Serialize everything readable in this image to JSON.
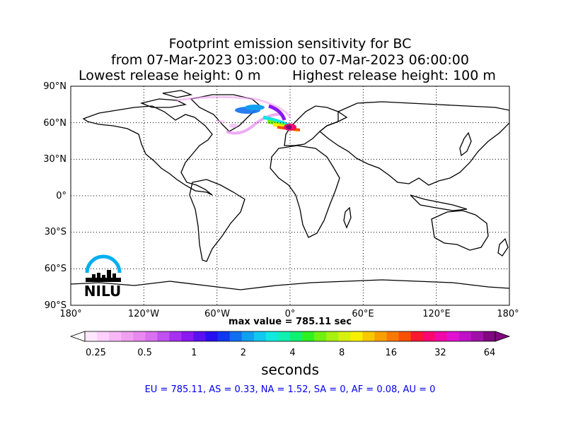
{
  "title": {
    "line1": "Footprint emission sensitivity for BC",
    "line2": "from 07-Mar-2023 03:00:00 to 07-Mar-2023 06:00:00",
    "lowest": "Lowest release height: 0 m",
    "highest": "Highest release height: 100 m"
  },
  "axes": {
    "lat_labels": [
      "90°N",
      "60°N",
      "30°N",
      "0°",
      "30°S",
      "60°S",
      "90°S"
    ],
    "lon_labels": [
      "180°",
      "120°W",
      "60°W",
      "0°",
      "60°E",
      "120°E",
      "180°"
    ]
  },
  "max_value": "max value = 785.11 sec",
  "colorbar": {
    "ticks": [
      "0.25",
      "0.5",
      "1",
      "2",
      "4",
      "8",
      "16",
      "32",
      "64"
    ],
    "units": "seconds",
    "colors": [
      "#ffe8ff",
      "#ffd0ff",
      "#f8b8f8",
      "#f0a0f0",
      "#e888f0",
      "#d870f0",
      "#c050f0",
      "#a830f0",
      "#8a18f0",
      "#5a10f0",
      "#2810f0",
      "#1038f0",
      "#1070f0",
      "#10a0f0",
      "#10c8f0",
      "#10e8e0",
      "#10f0b0",
      "#10f070",
      "#30f020",
      "#70f010",
      "#a8f010",
      "#d8f010",
      "#f8f000",
      "#f8c800",
      "#f8a000",
      "#f87800",
      "#f85000",
      "#f81830",
      "#f80870",
      "#f008a8",
      "#e010d0",
      "#c010c8",
      "#a010a8",
      "#800880"
    ]
  },
  "regions_text": "EU = 785.11,  AS = 0.33,  NA = 1.52,  SA = 0,  AF = 0.08,  AU = 0",
  "logo": {
    "text": "NILU",
    "arc_color": "#00aeef"
  }
}
